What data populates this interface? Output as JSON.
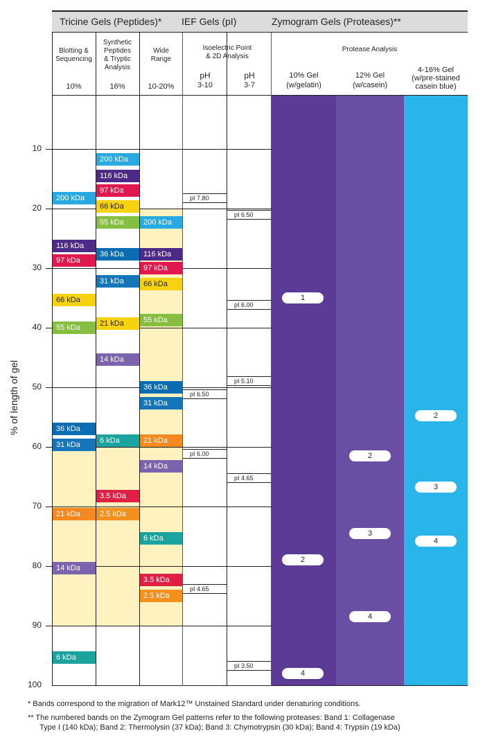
{
  "header": {
    "tricine": "Tricine Gels (Peptides)*",
    "ief": "IEF Gels (pI)",
    "zymogram": "Zymogram Gels (Proteases)**"
  },
  "subheader": {
    "blotting": [
      "Blotting &",
      "Sequencing"
    ],
    "synthetic": [
      "Synthetic",
      "Peptides",
      "& Tryptic",
      "Analysis"
    ],
    "wide": [
      "Wide",
      "Range"
    ],
    "isoelectric": [
      "Isoelectric Point",
      "& 2D Analysis"
    ],
    "protease": "Protease Analysis"
  },
  "columns": {
    "c1_pct": "10%",
    "c2_pct": "16%",
    "c3_pct": "10-20%",
    "ph1": [
      "pH",
      "3-10"
    ],
    "ph2": [
      "pH",
      "3-7"
    ],
    "z1": [
      "10% Gel",
      "(w/gelatin)"
    ],
    "z2": [
      "12% Gel",
      "(w/casein)"
    ],
    "z3": [
      "4-16% Gel",
      "(w/pre-stained",
      "casein blue)"
    ]
  },
  "axis": {
    "ylabel": "% of length of gel",
    "ticks": [
      "10",
      "20",
      "30",
      "40",
      "50",
      "60",
      "70",
      "80",
      "90",
      "100"
    ]
  },
  "colors": {
    "c200": "#29a9e1",
    "c116": "#4c2a88",
    "c97": "#e0184d",
    "c66": "#f6d30e",
    "c55": "#86bf3f",
    "c36": "#0a6db4",
    "c31": "#1575bb",
    "c21": "#f5891f",
    "c14": "#7b63ad",
    "c6": "#1ba3a0",
    "c3_5": "#df1f44",
    "c2_5": "#f4901e",
    "shade": "#fdf2c0",
    "z1": "#5c3b97",
    "z2": "#6a4ea4",
    "z3": "#29b5ea"
  },
  "bands": {
    "col1": [
      {
        "label": "200 kDa",
        "pos": 18.3,
        "color": "c200"
      },
      {
        "label": "116 kDa",
        "pos": 26.3,
        "color": "c116"
      },
      {
        "label": "97 kDa",
        "pos": 28.7,
        "color": "c97"
      },
      {
        "label": "66 kDa",
        "pos": 35.3,
        "color": "c66",
        "dark": true
      },
      {
        "label": "55 kDa",
        "pos": 40.0,
        "color": "c55"
      },
      {
        "label": "36 kDa",
        "pos": 57.0,
        "color": "c36"
      },
      {
        "label": "31 kDa",
        "pos": 59.7,
        "color": "c31"
      },
      {
        "label": "21 kDa",
        "pos": 71.3,
        "color": "c21"
      },
      {
        "label": "14 kDa",
        "pos": 80.3,
        "color": "c14"
      },
      {
        "label": "6 kDa",
        "pos": 95.3,
        "color": "c6"
      }
    ],
    "col2": [
      {
        "label": "200 kDa",
        "pos": 11.8,
        "color": "c200"
      },
      {
        "label": "116 kDa",
        "pos": 14.5,
        "color": "c116"
      },
      {
        "label": "97 kDa",
        "pos": 17.0,
        "color": "c97"
      },
      {
        "label": "66 kDa",
        "pos": 19.7,
        "color": "c66",
        "dark": true
      },
      {
        "label": "55 kDa",
        "pos": 22.3,
        "color": "c55"
      },
      {
        "label": "36 kDa",
        "pos": 27.7,
        "color": "c36"
      },
      {
        "label": "31 kDa",
        "pos": 32.2,
        "color": "c31"
      },
      {
        "label": "21 kDa",
        "pos": 39.3,
        "color": "c66",
        "dark": true
      },
      {
        "label": "14 kDa",
        "pos": 45.3,
        "color": "c14"
      },
      {
        "label": "6 kDa",
        "pos": 59.0,
        "color": "c6"
      },
      {
        "label": "3.5 kDa",
        "pos": 68.3,
        "color": "c3_5"
      },
      {
        "label": "2.5 kDa",
        "pos": 71.3,
        "color": "c2_5"
      }
    ],
    "col3": [
      {
        "label": "200 kDa",
        "pos": 22.3,
        "color": "c200"
      },
      {
        "label": "116 kDa",
        "pos": 27.7,
        "color": "c116"
      },
      {
        "label": "97 kDa",
        "pos": 30.0,
        "color": "c97"
      },
      {
        "label": "66 kDa",
        "pos": 32.7,
        "color": "c66",
        "dark": true
      },
      {
        "label": "55 kDa",
        "pos": 38.7,
        "color": "c55"
      },
      {
        "label": "36 kDa",
        "pos": 50.0,
        "color": "c36"
      },
      {
        "label": "31 kDa",
        "pos": 52.7,
        "color": "c31"
      },
      {
        "label": "21 kDa",
        "pos": 59.0,
        "color": "c21"
      },
      {
        "label": "14 kDa",
        "pos": 63.3,
        "color": "c14"
      },
      {
        "label": "6 kDa",
        "pos": 75.3,
        "color": "c6"
      },
      {
        "label": "3.5 kDa",
        "pos": 82.3,
        "color": "c3_5"
      },
      {
        "label": "2.5 kDa",
        "pos": 85.0,
        "color": "c2_5"
      }
    ]
  },
  "shading": {
    "col1": [
      60,
      90
    ],
    "col2": [
      60,
      90
    ],
    "col3": [
      20,
      90
    ]
  },
  "pi": {
    "ph310": [
      {
        "label": "pI 7.80",
        "pos": 18.2
      },
      {
        "label": "pI 6.50",
        "pos": 51.2
      },
      {
        "label": "pI 6.00",
        "pos": 61.2
      },
      {
        "label": "pI 4.65",
        "pos": 83.8
      }
    ],
    "ph37": [
      {
        "label": "pI 6.50",
        "pos": 21.0
      },
      {
        "label": "pI 6.00",
        "pos": 36.2
      },
      {
        "label": "pI 5.10",
        "pos": 49.0
      },
      {
        "label": "pI 4.65",
        "pos": 65.2
      },
      {
        "label": "pI 3.50",
        "pos": 96.8
      }
    ]
  },
  "zymo": {
    "z1": [
      {
        "label": "1",
        "pos": 35.0
      },
      {
        "label": "2",
        "pos": 79.0
      },
      {
        "label": "4",
        "pos": 98.0
      }
    ],
    "z2": [
      {
        "label": "2",
        "pos": 61.5
      },
      {
        "label": "3",
        "pos": 74.5
      },
      {
        "label": "4",
        "pos": 88.5
      }
    ],
    "z3": [
      {
        "label": "2",
        "pos": 54.8
      },
      {
        "label": "3",
        "pos": 66.8
      },
      {
        "label": "4",
        "pos": 75.8
      }
    ]
  },
  "footnotes": {
    "f1": "* Bands correspond to the migration of Mark12™ Unstained Standard under denaturing conditions.",
    "f2a": "** The numbered bands on the Zymogram Gel patterns refer to the following proteases: Band 1: Collagenase",
    "f2b": "Type I (140 kDa); Band 2: Thermolysin (37 kDa); Band 3: Chymotrypsin (30 kDa); Band 4: Trypsin (19 kDa)"
  }
}
